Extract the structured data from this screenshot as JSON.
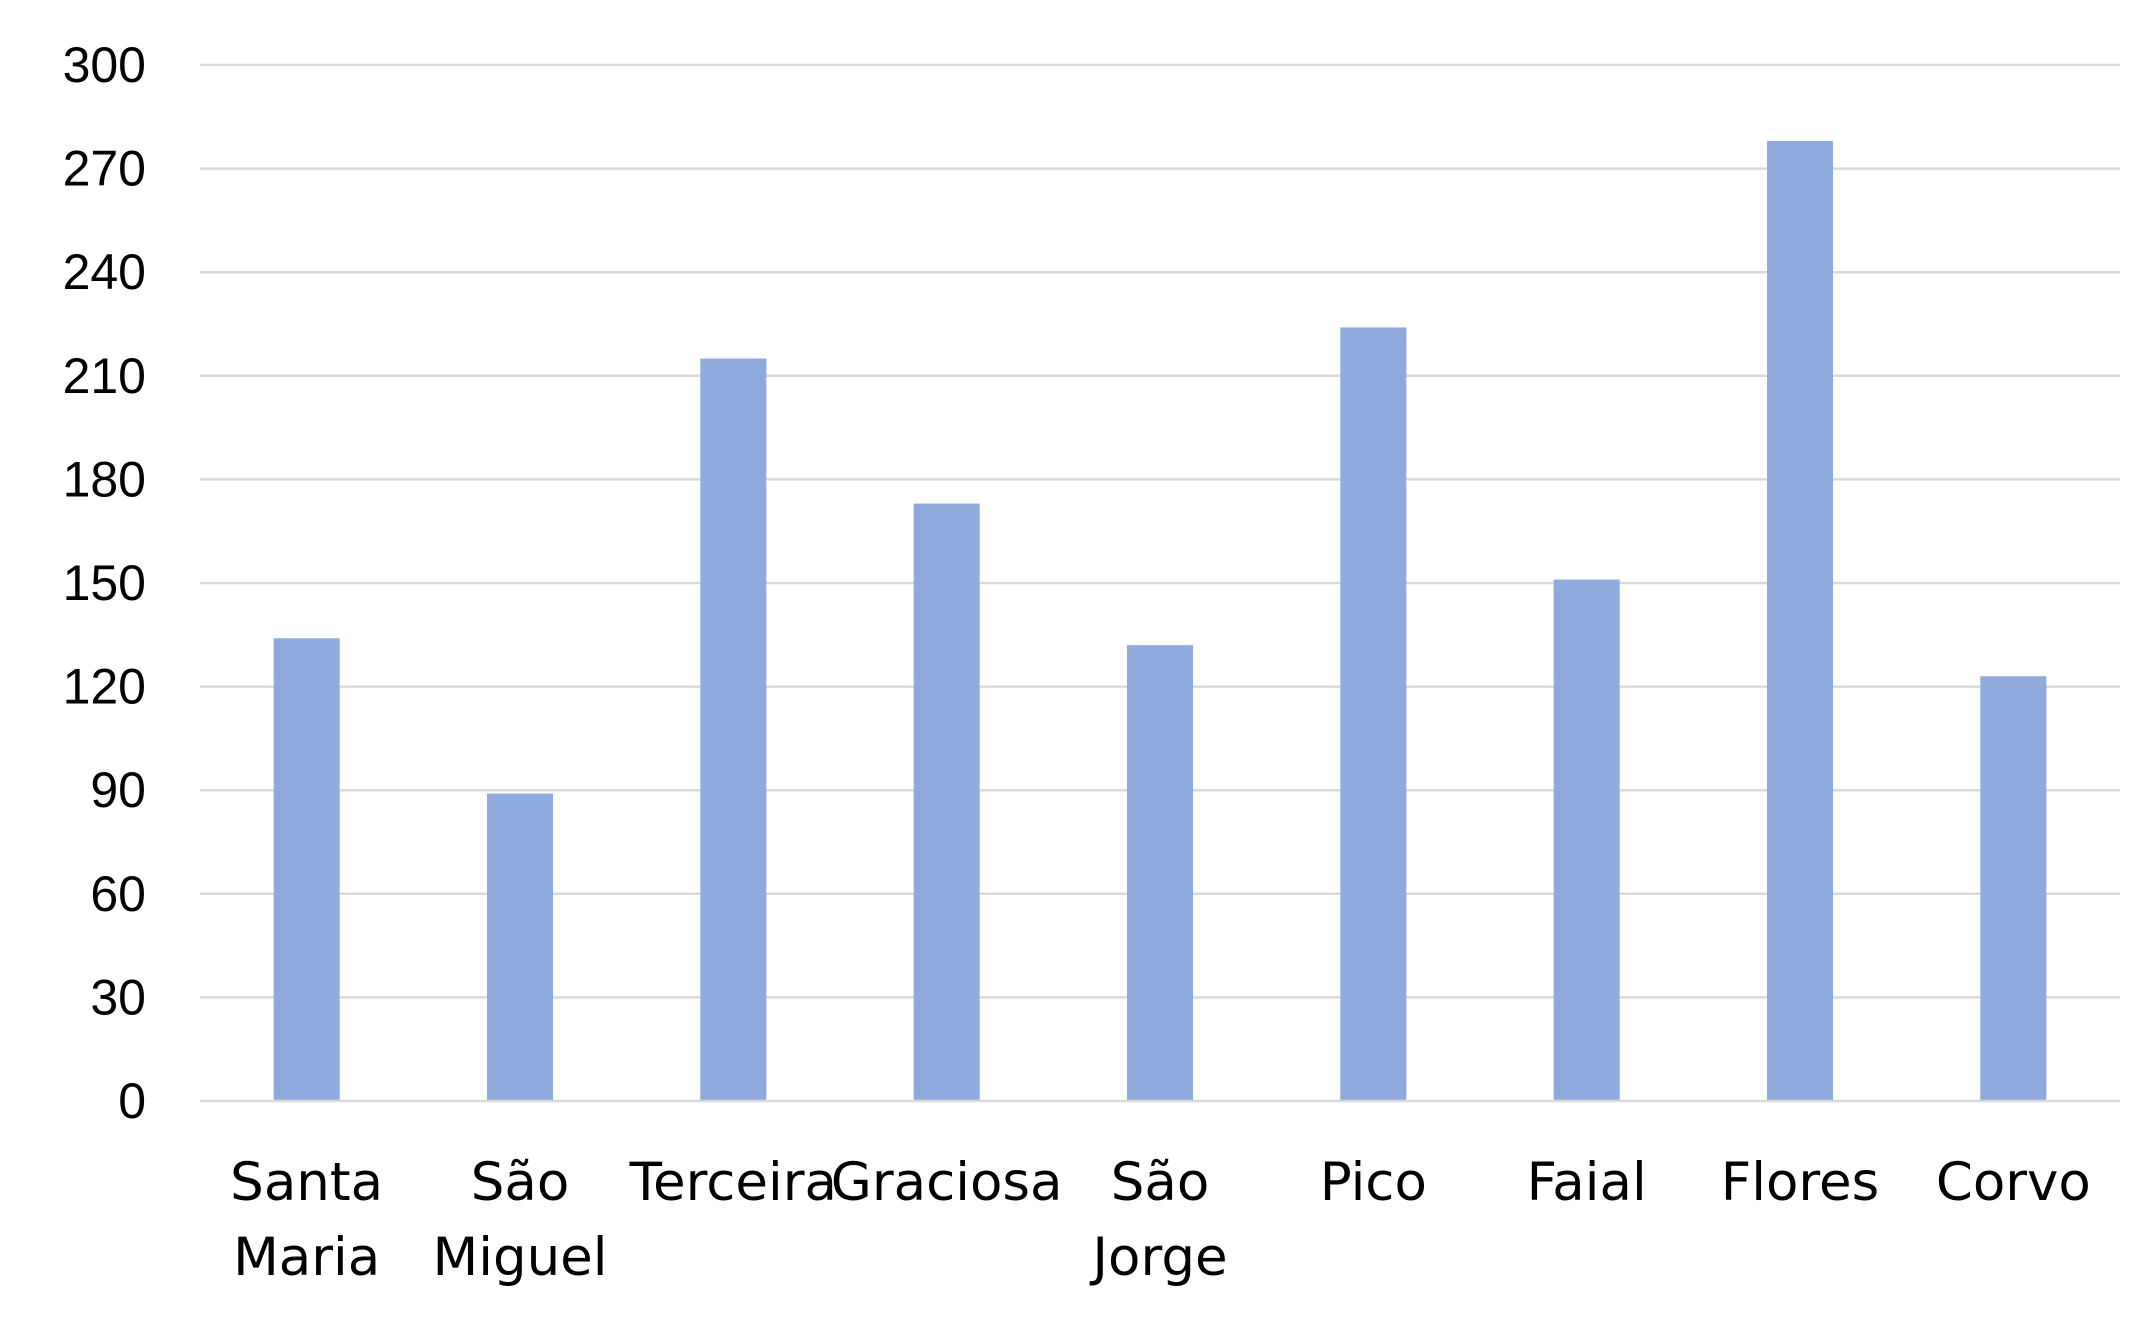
{
  "chart_data": {
    "type": "bar",
    "title": "",
    "xlabel": "",
    "ylabel": "",
    "categories": [
      [
        "Santa",
        "Maria"
      ],
      [
        "São",
        "Miguel"
      ],
      [
        "Terceira"
      ],
      [
        "Graciosa"
      ],
      [
        "São",
        "Jorge"
      ],
      [
        "Pico"
      ],
      [
        "Faial"
      ],
      [
        "Flores"
      ],
      [
        "Corvo"
      ]
    ],
    "values": [
      134,
      89,
      215,
      173,
      132,
      224,
      151,
      278,
      123
    ],
    "ylim": [
      0,
      300
    ],
    "yticks": [
      "0",
      "30",
      "60",
      "90",
      "120",
      "150",
      "180",
      "210",
      "240",
      "270",
      "300"
    ],
    "grid": true,
    "legend": "none",
    "bar_color": "#8faadc"
  }
}
